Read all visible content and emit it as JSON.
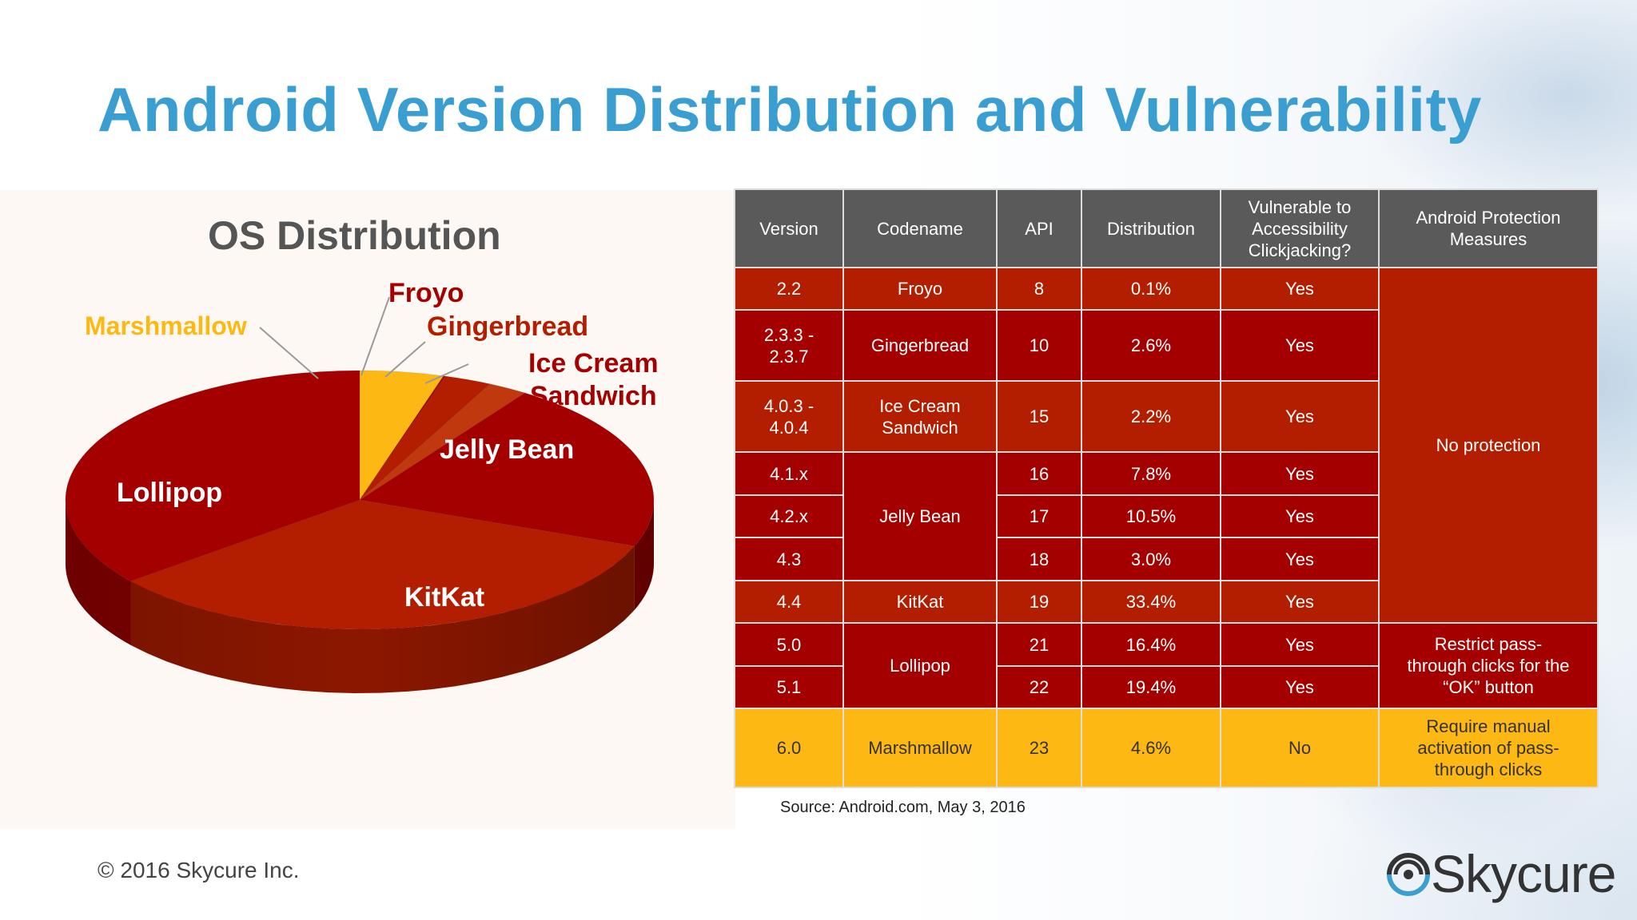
{
  "header": {
    "title": "Android Version Distribution and Vulnerability"
  },
  "chart_data": {
    "type": "pie",
    "title": "OS Distribution",
    "categories": [
      "Marshmallow",
      "Froyo",
      "Gingerbread",
      "Ice Cream Sandwich",
      "Jelly Bean",
      "KitKat",
      "Lollipop"
    ],
    "values": [
      4.6,
      0.1,
      2.6,
      2.2,
      21.3,
      33.4,
      35.8
    ],
    "colors": [
      "#fdb813",
      "#a50000",
      "#b41e00",
      "#c0380e",
      "#a50000",
      "#b41e00",
      "#a50000"
    ]
  },
  "pie_labels": {
    "marshmallow": "Marshmallow",
    "froyo": "Froyo",
    "gingerbread": "Gingerbread",
    "ics_line1": "Ice Cream",
    "ics_line2": "Sandwich",
    "jelly_bean": "Jelly Bean",
    "lollipop": "Lollipop",
    "kitkat": "KitKat"
  },
  "table": {
    "headers": {
      "version": "Version",
      "codename": "Codename",
      "api": "API",
      "distribution": "Distribution",
      "vulnerable_1": "Vulnerable to",
      "vulnerable_2": "Accessibility",
      "vulnerable_3": "Clickjacking?",
      "protection_1": "Android Protection",
      "protection_2": "Measures"
    },
    "rows": [
      {
        "version": "2.2",
        "codename": "Froyo",
        "api": "8",
        "distribution": "0.1%",
        "vulnerable": "Yes"
      },
      {
        "version_1": "2.3.3 -",
        "version_2": "2.3.7",
        "codename": "Gingerbread",
        "api": "10",
        "distribution": "2.6%",
        "vulnerable": "Yes"
      },
      {
        "version_1": "4.0.3 -",
        "version_2": "4.0.4",
        "codename_1": "Ice Cream",
        "codename_2": "Sandwich",
        "api": "15",
        "distribution": "2.2%",
        "vulnerable": "Yes"
      },
      {
        "version": "4.1.x",
        "codename": "Jelly Bean",
        "api": "16",
        "distribution": "7.8%",
        "vulnerable": "Yes"
      },
      {
        "version": "4.2.x",
        "api": "17",
        "distribution": "10.5%",
        "vulnerable": "Yes"
      },
      {
        "version": "4.3",
        "api": "18",
        "distribution": "3.0%",
        "vulnerable": "Yes"
      },
      {
        "version": "4.4",
        "codename": "KitKat",
        "api": "19",
        "distribution": "33.4%",
        "vulnerable": "Yes"
      },
      {
        "version": "5.0",
        "codename": "Lollipop",
        "api": "21",
        "distribution": "16.4%",
        "vulnerable": "Yes"
      },
      {
        "version": "5.1",
        "api": "22",
        "distribution": "19.4%",
        "vulnerable": "Yes"
      },
      {
        "version": "6.0",
        "codename": "Marshmallow",
        "api": "23",
        "distribution": "4.6%",
        "vulnerable": "No"
      }
    ],
    "protection": {
      "none": "No protection",
      "lollipop_1": "Restrict pass-",
      "lollipop_2": "through clicks for the",
      "lollipop_3": "“OK” button",
      "marshmallow_1": "Require manual",
      "marshmallow_2": "activation of pass-",
      "marshmallow_3": "through clicks"
    }
  },
  "source": "Source:  Android.com, May 3, 2016",
  "footer": {
    "copyright": "© 2016 Skycure Inc.",
    "logo_text": "Skycure",
    "logo_icon": "skycure-logo-icon"
  }
}
